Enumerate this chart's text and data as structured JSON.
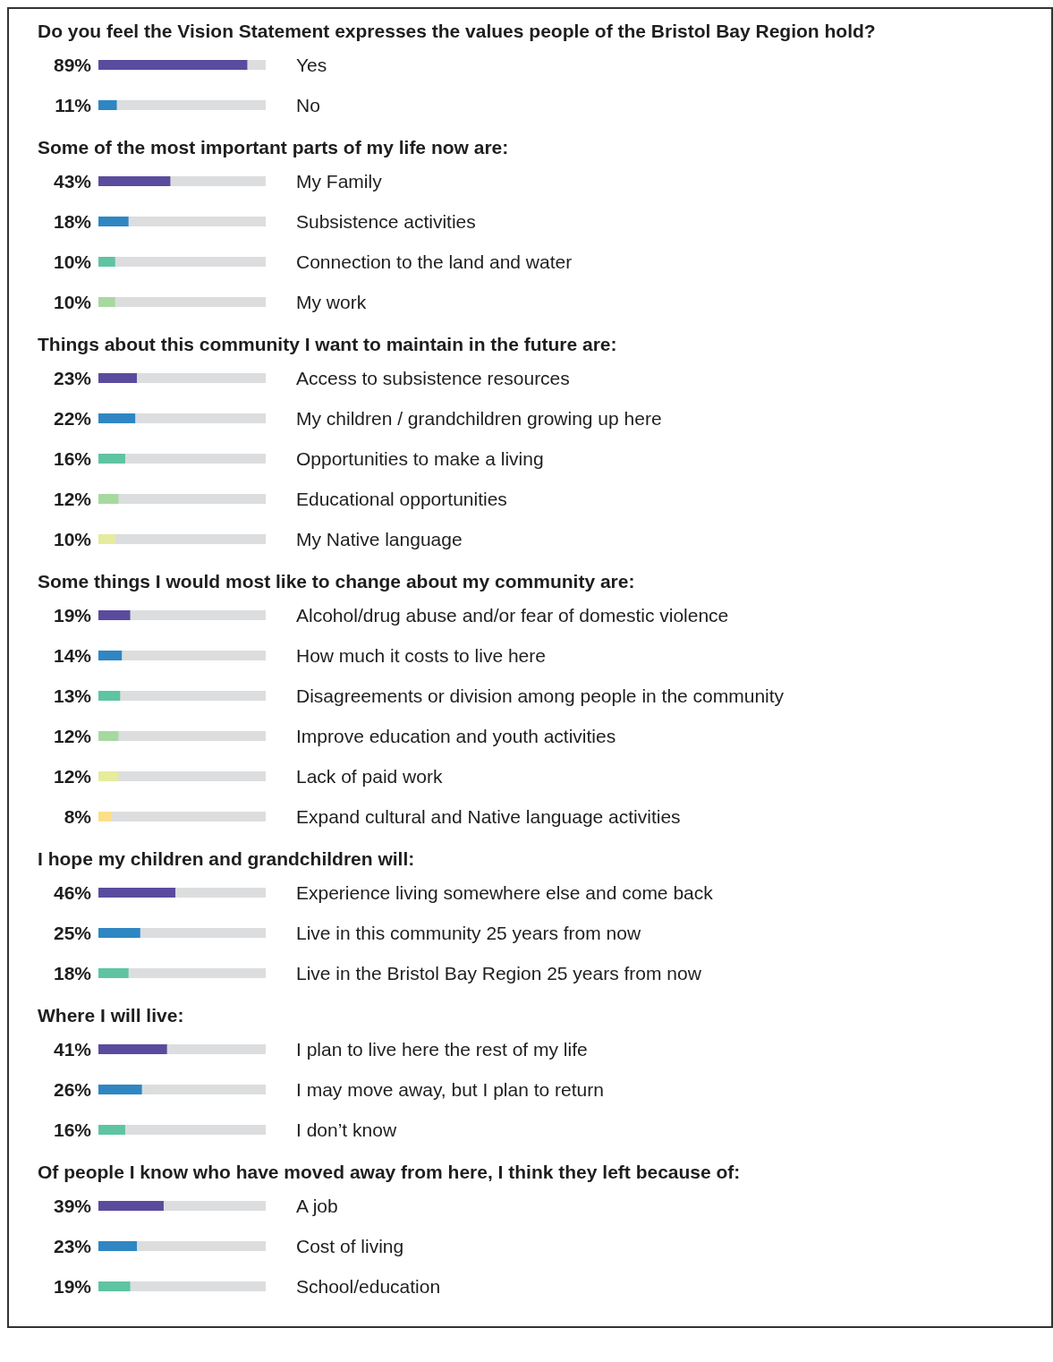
{
  "chart_data": [
    {
      "type": "bar",
      "orientation": "horizontal",
      "title": "Do you feel the Vision Statement expresses the values people of the Bristol Bay Region hold?",
      "categories": [
        "Yes",
        "No"
      ],
      "values": [
        89,
        11
      ],
      "value_labels": [
        "89%",
        "11%"
      ],
      "colors": [
        "#5b4b9e",
        "#2f86c3"
      ],
      "xlim": [
        0,
        100
      ],
      "tick_labels": "y"
    },
    {
      "type": "bar",
      "orientation": "horizontal",
      "title": "Some of the most important parts of my life now are:",
      "categories": [
        "My Family",
        "Subsistence activities",
        "Connection to the land and water",
        "My work"
      ],
      "values": [
        43,
        18,
        10,
        10
      ],
      "value_labels": [
        "43%",
        "18%",
        "10%",
        "10%"
      ],
      "colors": [
        "#5b4b9e",
        "#2f86c3",
        "#5ec4a2",
        "#a6d9a0"
      ],
      "xlim": [
        0,
        100
      ],
      "tick_labels": "y"
    },
    {
      "type": "bar",
      "orientation": "horizontal",
      "title": "Things about this community I want to maintain in the future are:",
      "categories": [
        "Access to subsistence resources",
        "My children / grandchildren growing up here",
        "Opportunities to make a living",
        "Educational opportunities",
        "My Native language"
      ],
      "values": [
        23,
        22,
        16,
        12,
        10
      ],
      "value_labels": [
        "23%",
        "22%",
        "16%",
        "12%",
        "10%"
      ],
      "colors": [
        "#5b4b9e",
        "#2f86c3",
        "#5ec4a2",
        "#a6d9a0",
        "#e6ec9c"
      ],
      "xlim": [
        0,
        100
      ],
      "tick_labels": "y"
    },
    {
      "type": "bar",
      "orientation": "horizontal",
      "title": "Some things I would most like to change about my community are:",
      "categories": [
        "Alcohol/drug abuse and/or fear of domestic violence",
        "How much it costs to live here",
        "Disagreements or division among people in the community",
        "Improve education and  youth activities",
        "Lack of paid work",
        "Expand cultural and Native language activities"
      ],
      "values": [
        19,
        14,
        13,
        12,
        12,
        8
      ],
      "value_labels": [
        "19%",
        "14%",
        "13%",
        "12%",
        "12%",
        "8%"
      ],
      "colors": [
        "#5b4b9e",
        "#2f86c3",
        "#5ec4a2",
        "#a6d9a0",
        "#e6ec9c",
        "#fddf8a"
      ],
      "xlim": [
        0,
        100
      ],
      "tick_labels": "y"
    },
    {
      "type": "bar",
      "orientation": "horizontal",
      "title": "I hope my children and grandchildren will:",
      "categories": [
        "Experience living somewhere else and come back",
        "Live in this community 25 years from now",
        "Live in the Bristol Bay Region 25 years from now"
      ],
      "values": [
        46,
        25,
        18
      ],
      "value_labels": [
        "46%",
        "25%",
        "18%"
      ],
      "colors": [
        "#5b4b9e",
        "#2f86c3",
        "#5ec4a2"
      ],
      "xlim": [
        0,
        100
      ],
      "tick_labels": "y"
    },
    {
      "type": "bar",
      "orientation": "horizontal",
      "title": "Where I will live:",
      "categories": [
        "I plan to live here the rest of my life",
        "I may move away, but I plan to return",
        "I don’t know"
      ],
      "values": [
        41,
        26,
        16
      ],
      "value_labels": [
        "41%",
        "26%",
        "16%"
      ],
      "colors": [
        "#5b4b9e",
        "#2f86c3",
        "#5ec4a2"
      ],
      "xlim": [
        0,
        100
      ],
      "tick_labels": "y"
    },
    {
      "type": "bar",
      "orientation": "horizontal",
      "title": "Of people I know who have moved away from here, I think they left because of:",
      "categories": [
        "A job",
        "Cost of living",
        "School/education"
      ],
      "values": [
        39,
        23,
        19
      ],
      "value_labels": [
        "39%",
        "23%",
        "19%"
      ],
      "colors": [
        "#5b4b9e",
        "#2f86c3",
        "#5ec4a2"
      ],
      "xlim": [
        0,
        100
      ],
      "tick_labels": "y"
    }
  ]
}
